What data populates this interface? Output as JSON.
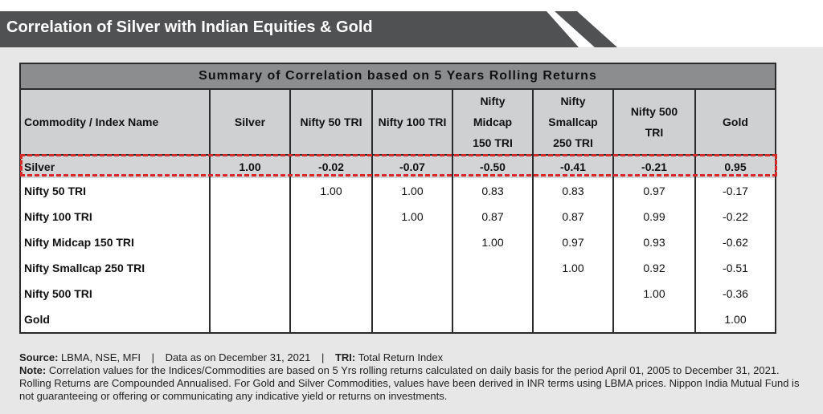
{
  "banner": {
    "title": "Correlation of Silver with Indian Equities & Gold"
  },
  "table": {
    "caption": "Summary of Correlation based on 5 Years Rolling Returns",
    "headers": [
      [
        "Commodity / Index Name"
      ],
      [
        "Silver"
      ],
      [
        "Nifty 50 TRI"
      ],
      [
        "Nifty 100 TRI"
      ],
      [
        "Nifty",
        "Midcap",
        "150 TRI"
      ],
      [
        "Nifty",
        "Smallcap",
        "250 TRI"
      ],
      [
        "Nifty 500",
        "TRI"
      ],
      [
        "Gold"
      ]
    ],
    "rows": [
      {
        "name": "Silver",
        "values": [
          "1.00",
          "-0.02",
          "-0.07",
          "-0.50",
          "-0.41",
          "-0.21",
          "0.95"
        ]
      },
      {
        "name": "Nifty 50 TRI",
        "values": [
          "",
          "1.00",
          "1.00",
          "0.83",
          "0.83",
          "0.97",
          "-0.17"
        ]
      },
      {
        "name": "Nifty 100 TRI",
        "values": [
          "",
          "",
          "1.00",
          "0.87",
          "0.87",
          "0.99",
          "-0.22"
        ]
      },
      {
        "name": "Nifty Midcap 150 TRI",
        "values": [
          "",
          "",
          "",
          "1.00",
          "0.97",
          "0.93",
          "-0.62"
        ]
      },
      {
        "name": "Nifty Smallcap 250 TRI",
        "values": [
          "",
          "",
          "",
          "",
          "1.00",
          "0.92",
          "-0.51"
        ]
      },
      {
        "name": "Nifty 500 TRI",
        "values": [
          "",
          "",
          "",
          "",
          "",
          "1.00",
          "-0.36"
        ]
      },
      {
        "name": "Gold",
        "values": [
          "",
          "",
          "",
          "",
          "",
          "",
          "1.00"
        ]
      }
    ]
  },
  "footnote": {
    "source_label": "Source:",
    "source_text": "LBMA, NSE, MFI",
    "data_as_on": "Data as on December 31, 2021",
    "tri_label": "TRI:",
    "tri_text": "Total Return Index",
    "note_label": "Note:",
    "note_text": "Correlation values for the Indices/Commodities are based on 5 Yrs rolling returns calculated on daily basis for the period April 01, 2005 to December 31, 2021. Rolling Returns are Compounded Annualised. For Gold and Silver Commodities, values have been derived in INR terms using LBMA prices. Nippon India Mutual Fund is not guaranteeing or offering or communicating any indicative yield or returns on investments."
  },
  "colors": {
    "banner": "#505153",
    "panel": "#e7e7e8",
    "highlight": "#d42a2a"
  }
}
